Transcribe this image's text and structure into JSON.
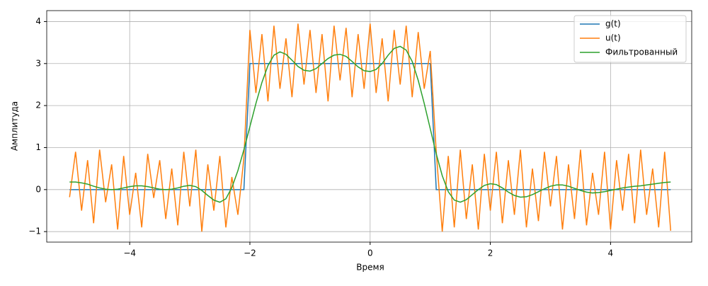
{
  "chart_data": {
    "type": "line",
    "xlabel": "Время",
    "ylabel": "Амплитуда",
    "x": [
      -5.0,
      -4.9,
      -4.8,
      -4.7,
      -4.6,
      -4.5,
      -4.4,
      -4.3,
      -4.2,
      -4.1,
      -4.0,
      -3.9,
      -3.8,
      -3.7,
      -3.6,
      -3.5,
      -3.4,
      -3.3,
      -3.2,
      -3.1,
      -3.0,
      -2.9,
      -2.8,
      -2.7,
      -2.6,
      -2.5,
      -2.4,
      -2.3,
      -2.2,
      -2.1,
      -2.0,
      -1.9,
      -1.8,
      -1.7,
      -1.6,
      -1.5,
      -1.4,
      -1.3,
      -1.2,
      -1.1,
      -1.0,
      -0.9,
      -0.8,
      -0.7,
      -0.6,
      -0.5,
      -0.4,
      -0.3,
      -0.2,
      -0.1,
      0.0,
      0.1,
      0.2,
      0.3,
      0.4,
      0.5,
      0.6,
      0.7,
      0.8,
      0.9,
      1.0,
      1.1,
      1.2,
      1.3,
      1.4,
      1.5,
      1.6,
      1.7,
      1.8,
      1.9,
      2.0,
      2.1,
      2.2,
      2.3,
      2.4,
      2.5,
      2.6,
      2.7,
      2.8,
      2.9,
      3.0,
      3.1,
      3.2,
      3.3,
      3.4,
      3.5,
      3.6,
      3.7,
      3.8,
      3.9,
      4.0,
      4.1,
      4.2,
      4.3,
      4.4,
      4.5,
      4.6,
      4.7,
      4.8,
      4.9,
      5.0
    ],
    "series": [
      {
        "name": "g(t)",
        "color": "#1f77b4",
        "values": [
          0,
          0,
          0,
          0,
          0,
          0,
          0,
          0,
          0,
          0,
          0,
          0,
          0,
          0,
          0,
          0,
          0,
          0,
          0,
          0,
          0,
          0,
          0,
          0,
          0,
          0,
          0,
          0,
          0,
          0,
          3,
          3,
          3,
          3,
          3,
          3,
          3,
          3,
          3,
          3,
          3,
          3,
          3,
          3,
          3,
          3,
          3,
          3,
          3,
          3,
          3,
          3,
          3,
          3,
          3,
          3,
          3,
          3,
          3,
          3,
          3,
          0,
          0,
          0,
          0,
          0,
          0,
          0,
          0,
          0,
          0,
          0,
          0,
          0,
          0,
          0,
          0,
          0,
          0,
          0,
          0,
          0,
          0,
          0,
          0,
          0,
          0,
          0,
          0,
          0,
          0,
          0,
          0,
          0,
          0,
          0,
          0,
          0,
          0,
          0,
          0
        ]
      },
      {
        "name": "u(t)",
        "color": "#ff7f0e",
        "values": [
          -0.18,
          0.9,
          -0.5,
          0.7,
          -0.8,
          0.95,
          -0.3,
          0.6,
          -0.95,
          0.8,
          -0.6,
          0.4,
          -0.9,
          0.85,
          -0.2,
          0.7,
          -0.7,
          0.5,
          -0.85,
          0.9,
          -0.4,
          0.95,
          -1.0,
          0.6,
          -0.5,
          0.8,
          -0.9,
          0.3,
          -0.6,
          0.75,
          3.8,
          2.3,
          3.7,
          2.1,
          3.9,
          2.4,
          3.6,
          2.2,
          3.95,
          2.5,
          3.8,
          2.3,
          3.7,
          2.1,
          3.9,
          2.6,
          3.85,
          2.2,
          3.7,
          2.4,
          3.95,
          2.3,
          3.6,
          2.1,
          3.8,
          2.5,
          3.9,
          2.2,
          3.75,
          2.4,
          3.3,
          0.9,
          -1.0,
          0.8,
          -0.9,
          0.95,
          -0.7,
          0.6,
          -0.95,
          0.85,
          -0.5,
          0.9,
          -0.8,
          0.7,
          -0.6,
          0.95,
          -0.9,
          0.5,
          -0.75,
          0.9,
          -0.4,
          0.8,
          -0.95,
          0.6,
          -0.7,
          0.95,
          -0.85,
          0.4,
          -0.6,
          0.9,
          -0.95,
          0.7,
          -0.5,
          0.85,
          -0.8,
          0.95,
          -0.6,
          0.5,
          -0.9,
          0.9,
          -0.98
        ]
      },
      {
        "name": "Фильтрованный",
        "color": "#2ca02c",
        "values": [
          0.18,
          0.18,
          0.16,
          0.13,
          0.08,
          0.04,
          0.01,
          0.0,
          0.01,
          0.04,
          0.07,
          0.09,
          0.09,
          0.07,
          0.04,
          0.01,
          0.0,
          0.01,
          0.04,
          0.08,
          0.1,
          0.07,
          -0.02,
          -0.14,
          -0.25,
          -0.3,
          -0.22,
          0.05,
          0.45,
          0.95,
          1.5,
          2.05,
          2.55,
          2.95,
          3.2,
          3.28,
          3.22,
          3.08,
          2.93,
          2.84,
          2.82,
          2.88,
          3.0,
          3.12,
          3.2,
          3.22,
          3.17,
          3.05,
          2.92,
          2.83,
          2.81,
          2.86,
          3.0,
          3.2,
          3.36,
          3.41,
          3.32,
          3.05,
          2.6,
          2.05,
          1.45,
          0.85,
          0.33,
          -0.05,
          -0.25,
          -0.3,
          -0.24,
          -0.12,
          0.0,
          0.1,
          0.14,
          0.12,
          0.04,
          -0.06,
          -0.14,
          -0.18,
          -0.17,
          -0.12,
          -0.05,
          0.02,
          0.08,
          0.11,
          0.11,
          0.08,
          0.03,
          -0.02,
          -0.06,
          -0.08,
          -0.07,
          -0.05,
          -0.02,
          0.01,
          0.04,
          0.06,
          0.08,
          0.09,
          0.11,
          0.13,
          0.15,
          0.17,
          0.18
        ]
      }
    ],
    "xlim": [
      -5.38,
      5.35
    ],
    "ylim": [
      -1.25,
      4.26
    ],
    "xticks": [
      {
        "value": -4,
        "label": "−4"
      },
      {
        "value": -2,
        "label": "−2"
      },
      0,
      2,
      4
    ],
    "yticks": [
      {
        "value": -1,
        "label": "−1"
      },
      0,
      1,
      2,
      3,
      4
    ],
    "grid": true,
    "legend": "upper right"
  }
}
